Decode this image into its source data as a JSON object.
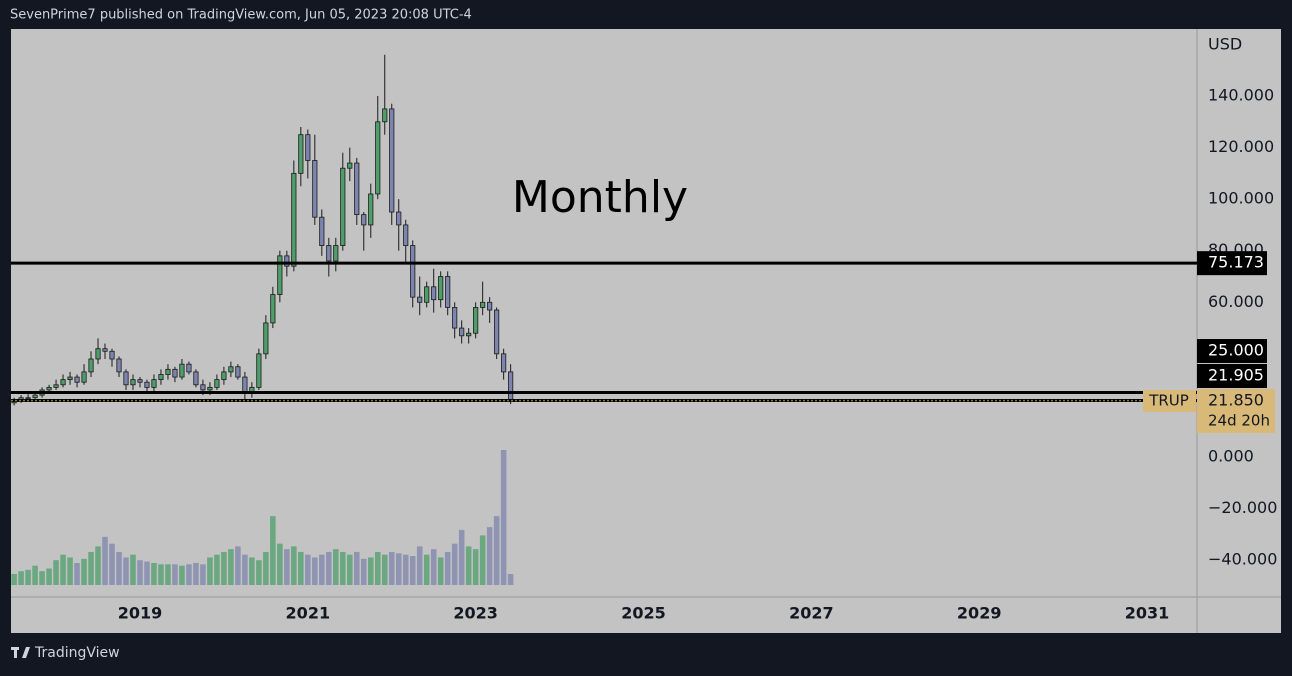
{
  "header": "SevenPrime7 published on TradingView.com, Jun 05, 2023 20:08 UTC-4",
  "footer": "TradingView",
  "chart_data": {
    "type": "candlestick",
    "annotation": "Monthly",
    "currency": "USD",
    "symbol": "TRUP",
    "countdown": "24d 20h",
    "categories": [
      null,
      null,
      null,
      null,
      null,
      null,
      null,
      null,
      null,
      null,
      null,
      null,
      null,
      null,
      null,
      null,
      null,
      null,
      null,
      null,
      null,
      null,
      null,
      null,
      null,
      null,
      null,
      null,
      null,
      null,
      null,
      null,
      null,
      null,
      null,
      null,
      null,
      null,
      null,
      null,
      null,
      null,
      null,
      null,
      null,
      null,
      null,
      null,
      null,
      null,
      null,
      null,
      null,
      null,
      null,
      null,
      null,
      null,
      null,
      null,
      null,
      null,
      null,
      null,
      null,
      null,
      null,
      null,
      null,
      null,
      null,
      null
    ],
    "open": [
      21,
      22,
      23,
      23,
      24,
      26,
      27,
      28,
      30,
      31,
      29,
      33,
      38,
      42,
      41,
      38,
      33,
      28,
      30,
      29,
      27,
      30,
      32,
      34,
      31,
      36,
      33,
      28,
      26,
      27,
      30,
      33,
      35,
      31,
      25,
      27,
      40,
      52,
      63,
      78,
      74,
      110,
      125,
      115,
      93,
      82,
      76,
      82,
      112,
      114,
      94,
      90,
      102,
      130,
      135,
      95,
      90,
      82,
      62,
      60,
      66,
      61,
      70,
      58,
      50,
      47,
      48,
      58,
      60,
      57,
      40,
      33
    ],
    "high": [
      23,
      24,
      25,
      25,
      27,
      28,
      30,
      32,
      33,
      32,
      36,
      41,
      46,
      44,
      42,
      39,
      34,
      32,
      31,
      30,
      32,
      34,
      36,
      35,
      38,
      37,
      34,
      30,
      29,
      32,
      35,
      37,
      36,
      33,
      29,
      42,
      55,
      66,
      80,
      80,
      115,
      128,
      127,
      125,
      96,
      85,
      85,
      118,
      120,
      116,
      95,
      106,
      140,
      156,
      137,
      100,
      92,
      84,
      70,
      68,
      73,
      72,
      72,
      60,
      53,
      50,
      60,
      68,
      62,
      58,
      42,
      36
    ],
    "low": [
      20,
      21,
      22,
      22,
      23,
      25,
      26,
      27,
      28,
      27,
      28,
      31,
      36,
      38,
      35,
      31,
      26,
      26,
      27,
      25,
      25,
      28,
      30,
      29,
      30,
      32,
      27,
      24,
      24,
      26,
      28,
      31,
      30,
      22,
      23,
      26,
      38,
      50,
      60,
      70,
      72,
      105,
      108,
      90,
      78,
      70,
      72,
      80,
      107,
      90,
      80,
      85,
      100,
      125,
      90,
      80,
      75,
      58,
      55,
      58,
      56,
      58,
      55,
      46,
      44,
      44,
      46,
      55,
      52,
      38,
      30,
      20.5
    ],
    "close": [
      22,
      23,
      23,
      24,
      26,
      27,
      28,
      30,
      31,
      29,
      33,
      38,
      42,
      41,
      38,
      33,
      28,
      30,
      29,
      27,
      30,
      32,
      34,
      31,
      36,
      33,
      28,
      26,
      27,
      30,
      33,
      35,
      31,
      25,
      27,
      40,
      52,
      63,
      78,
      74,
      110,
      125,
      115,
      93,
      82,
      76,
      82,
      112,
      114,
      94,
      90,
      102,
      130,
      135,
      95,
      90,
      82,
      62,
      60,
      66,
      61,
      70,
      58,
      50,
      47,
      48,
      58,
      60,
      57,
      40,
      33,
      21.85
    ],
    "volume": [
      8,
      10,
      11,
      14,
      10,
      12,
      18,
      22,
      20,
      16,
      19,
      24,
      28,
      35,
      30,
      24,
      20,
      22,
      18,
      17,
      16,
      15,
      15,
      15,
      14,
      15,
      16,
      15,
      20,
      22,
      24,
      26,
      28,
      22,
      20,
      18,
      24,
      50,
      30,
      26,
      28,
      24,
      22,
      20,
      22,
      24,
      26,
      24,
      22,
      24,
      19,
      20,
      24,
      22,
      24,
      23,
      22,
      21,
      28,
      22,
      26,
      20,
      24,
      30,
      40,
      28,
      26,
      36,
      42,
      50,
      98,
      8
    ],
    "up_color": "#4e9e6a",
    "down_color": "#7d84ad",
    "xlim": [
      -0.3,
      169
    ],
    "xticks": [
      {
        "value": 18,
        "label": "2019"
      },
      {
        "value": 42,
        "label": "2021"
      },
      {
        "value": 66,
        "label": "2023"
      },
      {
        "value": 90,
        "label": "2025"
      },
      {
        "value": 114,
        "label": "2027"
      },
      {
        "value": 138,
        "label": "2029"
      },
      {
        "value": 162,
        "label": "2031"
      }
    ],
    "ylim": [
      -54.3,
      165.6
    ],
    "yticks": [
      {
        "value": 140,
        "label": "140.000"
      },
      {
        "value": 120,
        "label": "120.000"
      },
      {
        "value": 100,
        "label": "100.000"
      },
      {
        "value": 80,
        "label": "80.000"
      },
      {
        "value": 60,
        "label": "60.000"
      },
      {
        "value": 0,
        "label": "0.000"
      },
      {
        "value": -20,
        "label": "−20.000"
      },
      {
        "value": -40,
        "label": "−40.000"
      }
    ],
    "hlines": [
      75.173,
      {
        "value": 25,
        "label": "25.000"
      },
      21.905
    ],
    "last_price": {
      "value": 21.85,
      "label": "21.850"
    }
  }
}
